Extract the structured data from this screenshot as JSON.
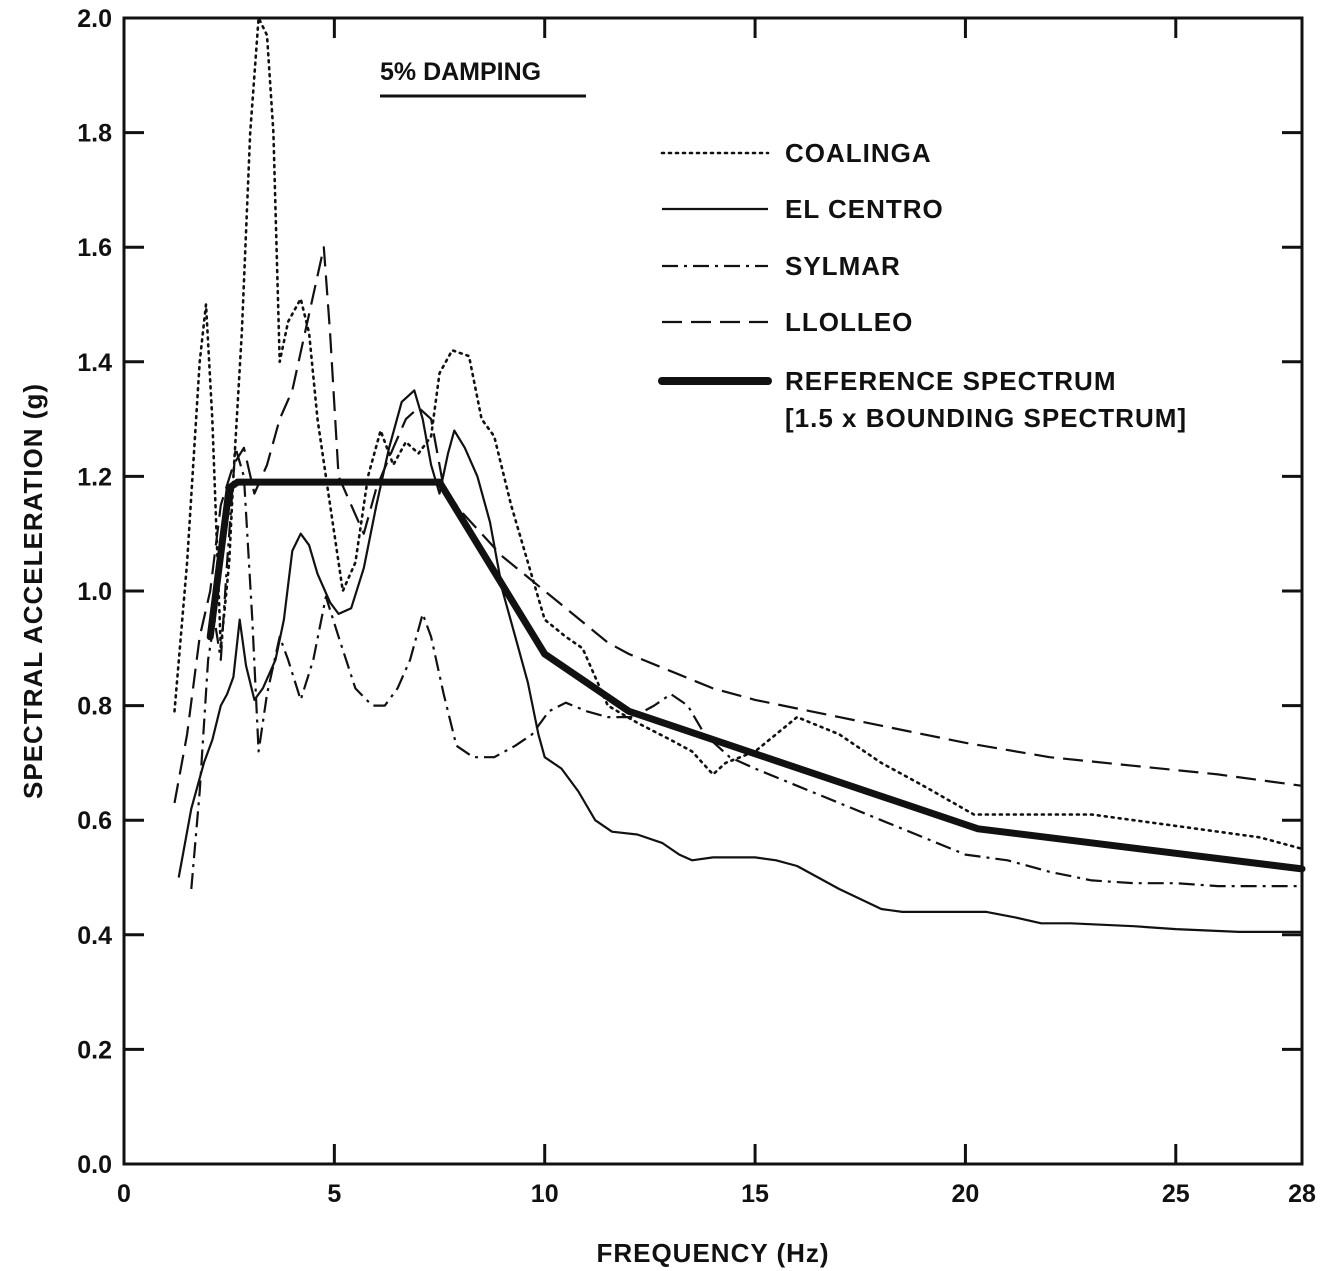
{
  "chart_data": {
    "type": "line",
    "title": "",
    "xlabel": "FREQUENCY (Hz)",
    "ylabel": "SPECTRAL ACCELERATION (g)",
    "xlim": [
      0,
      28
    ],
    "ylim": [
      0,
      2.0
    ],
    "grid": false,
    "legend_position": "top-right",
    "annotation": "5% DAMPING",
    "x_ticks": [
      "0",
      "5",
      "10",
      "15",
      "20",
      "25",
      "28"
    ],
    "x_tick_values": [
      0,
      5,
      10,
      15,
      20,
      25,
      28
    ],
    "y_ticks": [
      "0.0",
      "0.2",
      "0.4",
      "0.6",
      "0.8",
      "1.0",
      "1.2",
      "1.4",
      "1.6",
      "1.8",
      "2.0"
    ],
    "y_tick_values": [
      0,
      0.2,
      0.4,
      0.6,
      0.8,
      1.0,
      1.2,
      1.4,
      1.6,
      1.8,
      2.0
    ],
    "series": [
      {
        "name": "COALINGA",
        "style": "dotted",
        "points": [
          [
            1.2,
            0.79
          ],
          [
            1.5,
            1.05
          ],
          [
            1.8,
            1.4
          ],
          [
            1.95,
            1.5
          ],
          [
            2.1,
            1.3
          ],
          [
            2.3,
            0.9
          ],
          [
            2.5,
            1.05
          ],
          [
            2.6,
            1.2
          ],
          [
            2.8,
            1.45
          ],
          [
            3.0,
            1.8
          ],
          [
            3.2,
            2.0
          ],
          [
            3.4,
            1.97
          ],
          [
            3.55,
            1.8
          ],
          [
            3.7,
            1.4
          ],
          [
            3.9,
            1.47
          ],
          [
            4.2,
            1.51
          ],
          [
            4.4,
            1.45
          ],
          [
            4.6,
            1.3
          ],
          [
            4.9,
            1.15
          ],
          [
            5.2,
            1.0
          ],
          [
            5.5,
            1.05
          ],
          [
            5.8,
            1.2
          ],
          [
            6.1,
            1.28
          ],
          [
            6.4,
            1.22
          ],
          [
            6.7,
            1.26
          ],
          [
            7.0,
            1.24
          ],
          [
            7.3,
            1.27
          ],
          [
            7.5,
            1.38
          ],
          [
            7.8,
            1.42
          ],
          [
            8.2,
            1.41
          ],
          [
            8.5,
            1.3
          ],
          [
            8.8,
            1.27
          ],
          [
            9.2,
            1.15
          ],
          [
            9.6,
            1.05
          ],
          [
            10.0,
            0.95
          ],
          [
            10.5,
            0.92
          ],
          [
            10.9,
            0.9
          ],
          [
            11.5,
            0.8
          ],
          [
            12.2,
            0.77
          ],
          [
            13.0,
            0.74
          ],
          [
            13.5,
            0.72
          ],
          [
            14.0,
            0.68
          ],
          [
            14.3,
            0.7
          ],
          [
            15.0,
            0.72
          ],
          [
            16.0,
            0.78
          ],
          [
            17.0,
            0.75
          ],
          [
            18.0,
            0.7
          ],
          [
            19.0,
            0.66
          ],
          [
            20.2,
            0.61
          ],
          [
            21.0,
            0.61
          ],
          [
            23.0,
            0.61
          ],
          [
            25.0,
            0.59
          ],
          [
            27.0,
            0.57
          ],
          [
            28.0,
            0.55
          ]
        ]
      },
      {
        "name": "EL CENTRO",
        "style": "solid",
        "points": [
          [
            1.3,
            0.5
          ],
          [
            1.6,
            0.62
          ],
          [
            1.9,
            0.7
          ],
          [
            2.1,
            0.74
          ],
          [
            2.3,
            0.8
          ],
          [
            2.45,
            0.82
          ],
          [
            2.6,
            0.85
          ],
          [
            2.75,
            0.95
          ],
          [
            2.9,
            0.87
          ],
          [
            3.1,
            0.81
          ],
          [
            3.3,
            0.83
          ],
          [
            3.6,
            0.88
          ],
          [
            3.8,
            0.95
          ],
          [
            4.0,
            1.07
          ],
          [
            4.2,
            1.1
          ],
          [
            4.4,
            1.08
          ],
          [
            4.6,
            1.03
          ],
          [
            4.9,
            0.98
          ],
          [
            5.1,
            0.96
          ],
          [
            5.4,
            0.97
          ],
          [
            5.7,
            1.04
          ],
          [
            6.0,
            1.15
          ],
          [
            6.3,
            1.25
          ],
          [
            6.6,
            1.33
          ],
          [
            6.9,
            1.35
          ],
          [
            7.1,
            1.3
          ],
          [
            7.3,
            1.22
          ],
          [
            7.5,
            1.17
          ],
          [
            7.7,
            1.24
          ],
          [
            7.85,
            1.28
          ],
          [
            8.1,
            1.25
          ],
          [
            8.4,
            1.2
          ],
          [
            8.7,
            1.12
          ],
          [
            9.0,
            1.0
          ],
          [
            9.3,
            0.92
          ],
          [
            9.6,
            0.84
          ],
          [
            9.85,
            0.75
          ],
          [
            10.0,
            0.71
          ],
          [
            10.4,
            0.69
          ],
          [
            10.8,
            0.65
          ],
          [
            11.2,
            0.6
          ],
          [
            11.6,
            0.58
          ],
          [
            12.2,
            0.575
          ],
          [
            12.8,
            0.56
          ],
          [
            13.2,
            0.54
          ],
          [
            13.5,
            0.53
          ],
          [
            14.0,
            0.535
          ],
          [
            15.0,
            0.535
          ],
          [
            15.5,
            0.53
          ],
          [
            16.0,
            0.52
          ],
          [
            17.0,
            0.48
          ],
          [
            18.0,
            0.445
          ],
          [
            18.5,
            0.44
          ],
          [
            19.5,
            0.44
          ],
          [
            20.5,
            0.44
          ],
          [
            21.2,
            0.43
          ],
          [
            21.8,
            0.42
          ],
          [
            22.5,
            0.42
          ],
          [
            24.0,
            0.415
          ],
          [
            25.0,
            0.41
          ],
          [
            26.5,
            0.405
          ],
          [
            28.0,
            0.405
          ]
        ]
      },
      {
        "name": "SYLMAR",
        "style": "dashdot",
        "points": [
          [
            1.6,
            0.48
          ],
          [
            1.8,
            0.65
          ],
          [
            2.0,
            0.88
          ],
          [
            2.15,
            0.95
          ],
          [
            2.3,
            0.88
          ],
          [
            2.45,
            1.05
          ],
          [
            2.65,
            1.25
          ],
          [
            2.85,
            1.2
          ],
          [
            3.05,
            0.95
          ],
          [
            3.2,
            0.72
          ],
          [
            3.4,
            0.82
          ],
          [
            3.7,
            0.92
          ],
          [
            3.9,
            0.88
          ],
          [
            4.2,
            0.81
          ],
          [
            4.5,
            0.88
          ],
          [
            4.8,
            0.99
          ],
          [
            5.1,
            0.92
          ],
          [
            5.5,
            0.83
          ],
          [
            5.9,
            0.8
          ],
          [
            6.2,
            0.8
          ],
          [
            6.5,
            0.83
          ],
          [
            6.8,
            0.88
          ],
          [
            7.1,
            0.96
          ],
          [
            7.3,
            0.92
          ],
          [
            7.6,
            0.82
          ],
          [
            7.9,
            0.73
          ],
          [
            8.3,
            0.71
          ],
          [
            8.8,
            0.71
          ],
          [
            9.3,
            0.73
          ],
          [
            9.7,
            0.75
          ],
          [
            10.1,
            0.79
          ],
          [
            10.5,
            0.805
          ],
          [
            11.0,
            0.79
          ],
          [
            11.5,
            0.78
          ],
          [
            12.1,
            0.78
          ],
          [
            12.6,
            0.8
          ],
          [
            13.0,
            0.82
          ],
          [
            13.4,
            0.8
          ],
          [
            13.8,
            0.75
          ],
          [
            14.4,
            0.71
          ],
          [
            15.0,
            0.69
          ],
          [
            16.0,
            0.66
          ],
          [
            17.0,
            0.63
          ],
          [
            18.0,
            0.6
          ],
          [
            19.0,
            0.57
          ],
          [
            20.0,
            0.54
          ],
          [
            21.0,
            0.53
          ],
          [
            22.0,
            0.51
          ],
          [
            23.0,
            0.495
          ],
          [
            24.0,
            0.49
          ],
          [
            25.0,
            0.49
          ],
          [
            26.0,
            0.485
          ],
          [
            27.0,
            0.485
          ],
          [
            28.0,
            0.485
          ]
        ]
      },
      {
        "name": "LLOLLEO",
        "style": "dashed",
        "points": [
          [
            1.2,
            0.63
          ],
          [
            1.5,
            0.75
          ],
          [
            1.8,
            0.92
          ],
          [
            2.05,
            1.0
          ],
          [
            2.3,
            1.15
          ],
          [
            2.6,
            1.22
          ],
          [
            2.85,
            1.25
          ],
          [
            3.1,
            1.17
          ],
          [
            3.4,
            1.22
          ],
          [
            3.7,
            1.3
          ],
          [
            4.0,
            1.35
          ],
          [
            4.3,
            1.45
          ],
          [
            4.6,
            1.55
          ],
          [
            4.75,
            1.6
          ],
          [
            4.9,
            1.45
          ],
          [
            5.1,
            1.2
          ],
          [
            5.4,
            1.15
          ],
          [
            5.7,
            1.1
          ],
          [
            6.0,
            1.18
          ],
          [
            6.4,
            1.25
          ],
          [
            6.7,
            1.3
          ],
          [
            7.0,
            1.32
          ],
          [
            7.3,
            1.3
          ],
          [
            7.6,
            1.18
          ],
          [
            8.0,
            1.14
          ],
          [
            8.5,
            1.1
          ],
          [
            9.0,
            1.06
          ],
          [
            9.5,
            1.03
          ],
          [
            10.0,
            1.0
          ],
          [
            10.5,
            0.97
          ],
          [
            11.0,
            0.94
          ],
          [
            11.5,
            0.91
          ],
          [
            12.0,
            0.89
          ],
          [
            13.0,
            0.86
          ],
          [
            14.0,
            0.83
          ],
          [
            15.0,
            0.81
          ],
          [
            16.0,
            0.795
          ],
          [
            17.0,
            0.78
          ],
          [
            18.0,
            0.765
          ],
          [
            19.0,
            0.75
          ],
          [
            20.0,
            0.735
          ],
          [
            22.0,
            0.71
          ],
          [
            24.0,
            0.695
          ],
          [
            26.0,
            0.68
          ],
          [
            28.0,
            0.66
          ]
        ]
      },
      {
        "name": "REFERENCE SPECTRUM",
        "name_line2": "[1.5 x BOUNDING SPECTRUM]",
        "style": "thick",
        "points": [
          [
            2.05,
            0.92
          ],
          [
            2.5,
            1.18
          ],
          [
            2.7,
            1.19
          ],
          [
            7.5,
            1.19
          ],
          [
            10.0,
            0.89
          ],
          [
            12.0,
            0.79
          ],
          [
            20.3,
            0.585
          ],
          [
            28.0,
            0.515
          ]
        ]
      }
    ]
  }
}
